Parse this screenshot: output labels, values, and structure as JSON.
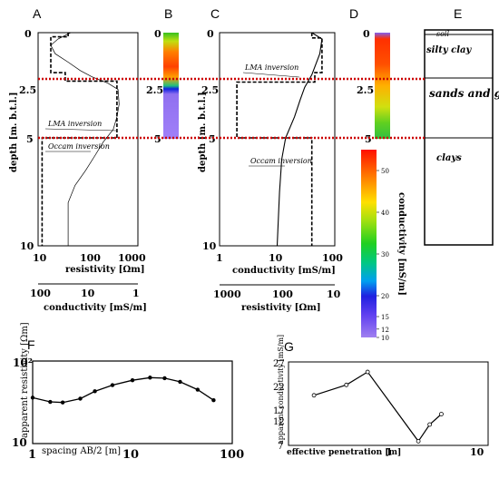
{
  "panels": {
    "A": "A",
    "B": "B",
    "C": "C",
    "D": "D",
    "E": "E",
    "F": "F",
    "G": "G"
  },
  "colors": {
    "guide_line": "#cc0000",
    "curve": "#000000",
    "dashed": "#000000",
    "frame": "#000000"
  },
  "chart_data": [
    {
      "id": "A",
      "type": "line",
      "x_scale": "log",
      "xlim": [
        10,
        1000
      ],
      "ylim": [
        0,
        10
      ],
      "y_reversed": true,
      "xlabel": "resistivity [Ωm]",
      "ylabel": "depth [m. b.t.l.]",
      "xticks": [
        "10",
        "100",
        "1000"
      ],
      "yticks": [
        "0",
        "2.5",
        "5",
        "10"
      ],
      "x2label": "conductivity [mS/m]",
      "x2ticks": [
        "100",
        "10",
        "1"
      ],
      "annotations": [
        "LMA inversion",
        "Occam inversion"
      ],
      "series": [
        {
          "style": "dashed-step",
          "points": [
            [
              40,
              0
            ],
            [
              40,
              0.2
            ],
            [
              18,
              0.2
            ],
            [
              18,
              1.9
            ],
            [
              35,
              1.9
            ],
            [
              35,
              2.3
            ],
            [
              380,
              2.3
            ],
            [
              380,
              5
            ],
            [
              12,
              5
            ],
            [
              12,
              10
            ]
          ]
        },
        {
          "style": "occam-step",
          "points": [
            [
              45,
              0
            ],
            [
              25,
              0.3
            ],
            [
              18,
              0.6
            ],
            [
              22,
              1
            ],
            [
              40,
              1.4
            ],
            [
              70,
              1.8
            ],
            [
              120,
              2.1
            ],
            [
              250,
              2.4
            ],
            [
              400,
              2.7
            ],
            [
              420,
              3.4
            ],
            [
              380,
              4
            ],
            [
              320,
              4.6
            ],
            [
              200,
              5.2
            ],
            [
              140,
              5.8
            ],
            [
              90,
              6.5
            ],
            [
              55,
              7.2
            ],
            [
              40,
              8
            ],
            [
              40,
              10
            ]
          ]
        }
      ]
    },
    {
      "id": "C",
      "type": "line",
      "x_scale": "log",
      "xlim": [
        1,
        100
      ],
      "ylim": [
        0,
        10
      ],
      "y_reversed": true,
      "xlabel": "conductivity [mS/m]",
      "ylabel": "depth [m. b.t.l.]",
      "xticks": [
        "1",
        "10",
        "100"
      ],
      "yticks": [
        "0",
        "2.5",
        "5",
        "10"
      ],
      "x2label": "resistivity [Ωm]",
      "x2ticks": [
        "1000",
        "100",
        "10"
      ],
      "annotations": [
        "LMA inversion",
        "Occam inversion"
      ],
      "series": [
        {
          "style": "dashed-step",
          "points": [
            [
              40,
              0
            ],
            [
              40,
              0.25
            ],
            [
              60,
              0.25
            ],
            [
              60,
              1.9
            ],
            [
              45,
              1.9
            ],
            [
              45,
              2.35
            ],
            [
              2,
              2.35
            ],
            [
              2,
              5
            ],
            [
              40,
              5
            ],
            [
              40,
              10
            ]
          ]
        },
        {
          "style": "occam-line",
          "points": [
            [
              40,
              0
            ],
            [
              60,
              0.3
            ],
            [
              55,
              1
            ],
            [
              40,
              2
            ],
            [
              30,
              2.6
            ],
            [
              25,
              3.2
            ],
            [
              20,
              4
            ],
            [
              14,
              5
            ],
            [
              12,
              6
            ],
            [
              11,
              7.5
            ],
            [
              10,
              10
            ]
          ]
        }
      ]
    },
    {
      "id": "D-colorbar",
      "type": "heatmap",
      "label": "conductivity [mS/m]",
      "ticks": [
        "10",
        "12",
        "15",
        "20",
        "30",
        "40",
        "50"
      ],
      "range": [
        10,
        55
      ]
    },
    {
      "id": "F",
      "type": "line",
      "x_scale": "log",
      "y_scale": "log",
      "xlim": [
        1,
        100
      ],
      "ylim": [
        10,
        100
      ],
      "xlabel": "spacing AB/2 [m]",
      "ylabel": "apparent resistivity [Ωm]",
      "xticks": [
        "1",
        "10",
        "100"
      ],
      "yticks": [
        "10",
        "10²"
      ],
      "points": [
        [
          1,
          36
        ],
        [
          1.5,
          32
        ],
        [
          2,
          31.5
        ],
        [
          3,
          35
        ],
        [
          4.2,
          43
        ],
        [
          6.3,
          51
        ],
        [
          10,
          58.5
        ],
        [
          15,
          63
        ],
        [
          21,
          62
        ],
        [
          30,
          56
        ],
        [
          45,
          45
        ],
        [
          65,
          33.5
        ]
      ]
    },
    {
      "id": "G",
      "type": "line",
      "x_scale": "log",
      "xlim": [
        0.1,
        10
      ],
      "ylim": [
        7,
        27
      ],
      "xlabel": "effective penetration [m]",
      "ylabel": "apparent conductivity [mS/m]",
      "xticks": [
        "1",
        "10"
      ],
      "yticks": [
        "7",
        "12",
        "17",
        "22",
        "27"
      ],
      "points": [
        [
          0.18,
          19
        ],
        [
          0.38,
          21.5
        ],
        [
          0.62,
          24.6
        ],
        [
          2,
          8
        ],
        [
          2.6,
          12
        ],
        [
          3.4,
          14.5
        ]
      ]
    }
  ],
  "section_E": {
    "layers": [
      {
        "name": "soil",
        "top": 0,
        "bottom": 0.3
      },
      {
        "name": "silty clay",
        "top": 0.3,
        "bottom": 2.2
      },
      {
        "name": "sands and gravels",
        "top": 2.2,
        "bottom": 5
      },
      {
        "name": "clays",
        "top": 5,
        "bottom": 10
      }
    ]
  }
}
